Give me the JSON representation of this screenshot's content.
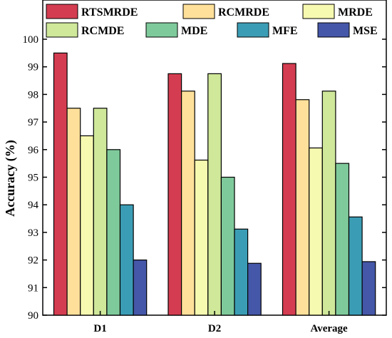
{
  "chart_data": {
    "type": "bar",
    "title": "",
    "xlabel": "",
    "ylabel": "Accuracy (%)",
    "ylim": [
      90,
      100
    ],
    "yticks": [
      90,
      91,
      92,
      93,
      94,
      95,
      96,
      97,
      98,
      99,
      100
    ],
    "grid": false,
    "legend_position": "top",
    "categories": [
      "D1",
      "D2",
      "Average"
    ],
    "series": [
      {
        "name": "RTSMRDE",
        "color": "#d43d51",
        "values": [
          99.5,
          98.75,
          99.12
        ]
      },
      {
        "name": "RCMRDE",
        "color": "#ffe09a",
        "values": [
          97.5,
          98.12,
          97.81
        ]
      },
      {
        "name": "MRDE",
        "color": "#f6f9b0",
        "values": [
          96.5,
          95.62,
          96.06
        ]
      },
      {
        "name": "RCMDE",
        "color": "#cfe89a",
        "values": [
          97.5,
          98.75,
          98.12
        ]
      },
      {
        "name": "MDE",
        "color": "#7fca9b",
        "values": [
          96.0,
          95.0,
          95.5
        ]
      },
      {
        "name": "MFE",
        "color": "#3b9db5",
        "values": [
          94.0,
          93.12,
          93.56
        ]
      },
      {
        "name": "MSE",
        "color": "#4557a8",
        "values": [
          92.0,
          91.88,
          91.94
        ]
      }
    ]
  }
}
